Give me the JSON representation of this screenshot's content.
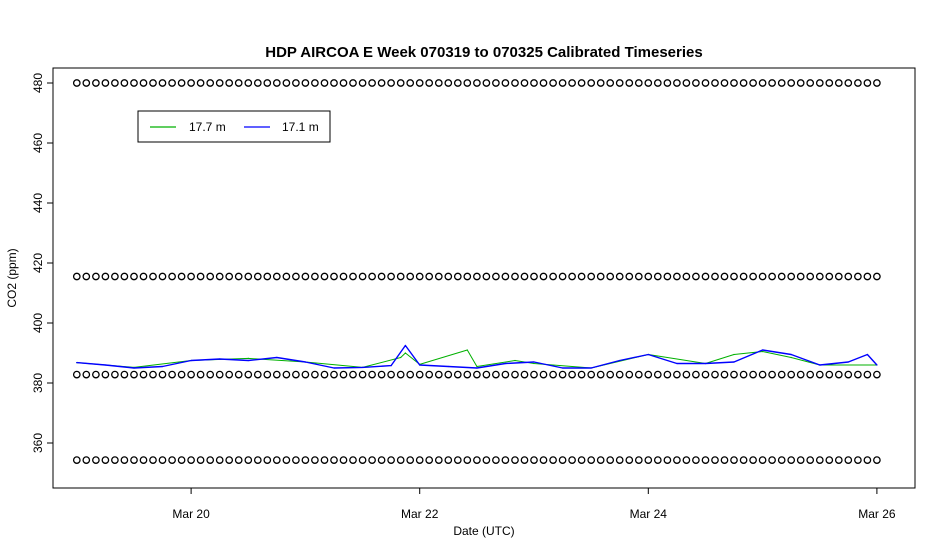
{
  "chart_data": {
    "type": "line",
    "title": "HDP AIRCOA E  Week 070319 to 070325  Calibrated Timeseries",
    "xlabel": "Date (UTC)",
    "ylabel": "CO2 (ppm)",
    "xlim": [
      "2007-03-18 19:00",
      "2007-03-26 08:00"
    ],
    "ylim": [
      345,
      485
    ],
    "x_ticks": [
      {
        "label": "Mar 20",
        "value": "2007-03-20 00:00"
      },
      {
        "label": "Mar 22",
        "value": "2007-03-22 00:00"
      },
      {
        "label": "Mar 24",
        "value": "2007-03-24 00:00"
      },
      {
        "label": "Mar 26",
        "value": "2007-03-26 00:00"
      }
    ],
    "y_ticks": [
      360,
      380,
      400,
      420,
      440,
      460,
      480
    ],
    "legend_position": "top-left",
    "legend": [
      {
        "label": "17.7 m",
        "color": "#00b000"
      },
      {
        "label": "17.1 m",
        "color": "#0000ff"
      }
    ],
    "series": [
      {
        "name": "17.7 m",
        "color": "#00b000",
        "points": [
          [
            "2007-03-19 00:00",
            386.8
          ],
          [
            "2007-03-19 12:00",
            385.2
          ],
          [
            "2007-03-20 00:00",
            387.5
          ],
          [
            "2007-03-20 12:00",
            388.2
          ],
          [
            "2007-03-21 00:00",
            387.0
          ],
          [
            "2007-03-21 12:00",
            385.2
          ],
          [
            "2007-03-21 20:00",
            388.5
          ],
          [
            "2007-03-21 21:00",
            390.0
          ],
          [
            "2007-03-22 00:00",
            386.2
          ],
          [
            "2007-03-22 10:00",
            391.0
          ],
          [
            "2007-03-22 12:00",
            385.5
          ],
          [
            "2007-03-22 20:00",
            387.5
          ],
          [
            "2007-03-23 00:00",
            386.5
          ],
          [
            "2007-03-23 12:00",
            385.0
          ],
          [
            "2007-03-24 00:00",
            389.5
          ],
          [
            "2007-03-24 12:00",
            386.5
          ],
          [
            "2007-03-24 18:00",
            389.5
          ],
          [
            "2007-03-25 00:00",
            390.5
          ],
          [
            "2007-03-25 06:00",
            388.5
          ],
          [
            "2007-03-25 12:00",
            386.0
          ],
          [
            "2007-03-26 00:00",
            386.0
          ]
        ]
      },
      {
        "name": "17.1 m",
        "color": "#0000ff",
        "points": [
          [
            "2007-03-19 00:00",
            386.8
          ],
          [
            "2007-03-19 06:00",
            386.0
          ],
          [
            "2007-03-19 12:00",
            385.0
          ],
          [
            "2007-03-19 18:00",
            385.5
          ],
          [
            "2007-03-20 00:00",
            387.5
          ],
          [
            "2007-03-20 06:00",
            388.0
          ],
          [
            "2007-03-20 12:00",
            387.5
          ],
          [
            "2007-03-20 18:00",
            388.5
          ],
          [
            "2007-03-21 00:00",
            387.0
          ],
          [
            "2007-03-21 06:00",
            385.0
          ],
          [
            "2007-03-21 12:00",
            385.2
          ],
          [
            "2007-03-21 18:00",
            385.8
          ],
          [
            "2007-03-21 21:00",
            392.5
          ],
          [
            "2007-03-22 00:00",
            386.0
          ],
          [
            "2007-03-22 06:00",
            385.5
          ],
          [
            "2007-03-22 12:00",
            385.0
          ],
          [
            "2007-03-22 18:00",
            386.5
          ],
          [
            "2007-03-23 00:00",
            387.0
          ],
          [
            "2007-03-23 06:00",
            385.0
          ],
          [
            "2007-03-23 12:00",
            385.0
          ],
          [
            "2007-03-23 18:00",
            387.5
          ],
          [
            "2007-03-24 00:00",
            389.5
          ],
          [
            "2007-03-24 06:00",
            386.5
          ],
          [
            "2007-03-24 12:00",
            386.5
          ],
          [
            "2007-03-24 18:00",
            387.0
          ],
          [
            "2007-03-25 00:00",
            391.0
          ],
          [
            "2007-03-25 06:00",
            389.5
          ],
          [
            "2007-03-25 12:00",
            386.0
          ],
          [
            "2007-03-25 18:00",
            387.0
          ],
          [
            "2007-03-25 22:00",
            389.5
          ],
          [
            "2007-03-26 00:00",
            386.0
          ]
        ]
      }
    ],
    "calibration_markers": {
      "symbol": "open-circle",
      "levels": [
        354.3,
        382.8,
        415.5,
        480.0
      ],
      "interval_hours": 2,
      "start": "2007-03-19 00:00",
      "end": "2007-03-26 00:00"
    }
  }
}
